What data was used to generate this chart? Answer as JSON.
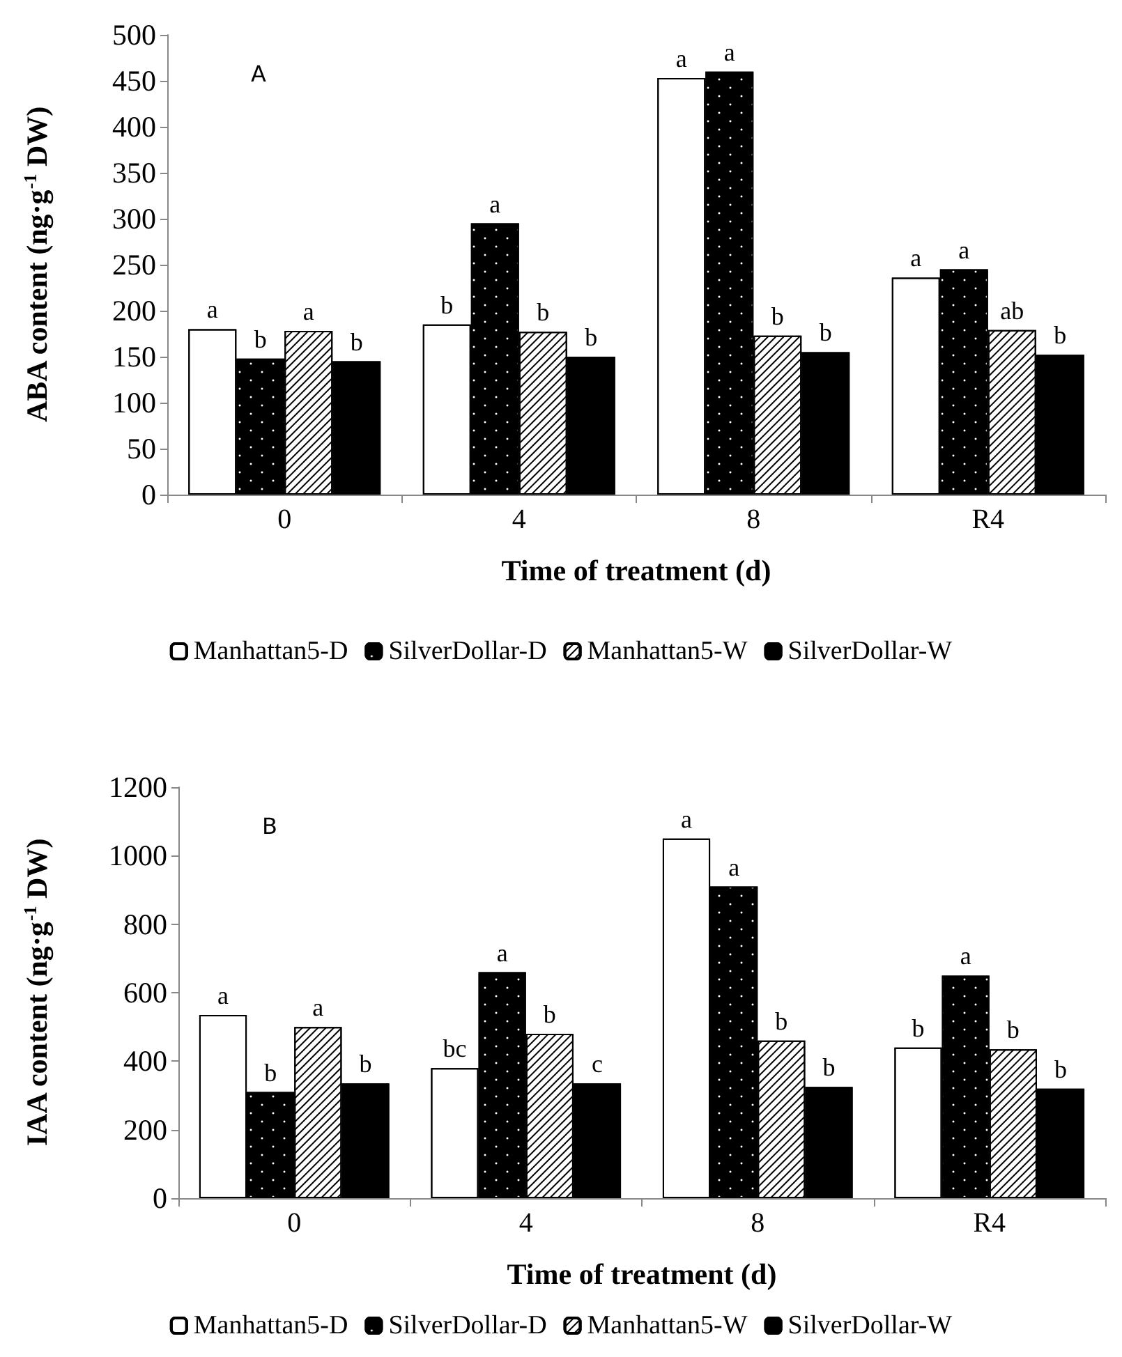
{
  "chart_data": [
    {
      "type": "bar",
      "annotations": [
        "A"
      ],
      "xlabel": "Time of treatment (d)",
      "ylabel": "ABA content (ng·g$^{-1}$ DW)",
      "categories": [
        "0",
        "4",
        "8",
        "R4"
      ],
      "ylim": [
        0,
        500
      ],
      "yticks": [
        0,
        50,
        100,
        150,
        200,
        250,
        300,
        350,
        400,
        450,
        500
      ],
      "legend": "bottom",
      "grid": false,
      "series": [
        {
          "name": "Manhattan5-D",
          "color": "#ffffff",
          "values": [
            180,
            185,
            453,
            236
          ],
          "value_labels": [
            "a",
            "b",
            "a",
            "a"
          ]
        },
        {
          "name": "SilverDollar-D",
          "color": "#000000",
          "values": [
            148,
            295,
            460,
            245
          ],
          "value_labels": [
            "b",
            "a",
            "a",
            "a"
          ]
        },
        {
          "name": "Manhattan5-W",
          "color": "#ffffff",
          "values": [
            178,
            177,
            173,
            179
          ],
          "value_labels": [
            "a",
            "b",
            "b",
            "ab"
          ]
        },
        {
          "name": "SilverDollar-W",
          "color": "#000000",
          "values": [
            145,
            150,
            155,
            152
          ],
          "value_labels": [
            "b",
            "b",
            "b",
            "b"
          ]
        }
      ]
    },
    {
      "type": "bar",
      "annotations": [
        "B"
      ],
      "xlabel": "Time of treatment (d)",
      "ylabel": "IAA content (ng·g$^{-1}$ DW)",
      "categories": [
        "0",
        "4",
        "8",
        "R4"
      ],
      "ylim": [
        0,
        1200
      ],
      "yticks": [
        0,
        200,
        400,
        600,
        800,
        1000,
        1200
      ],
      "legend": "bottom",
      "grid": false,
      "series": [
        {
          "name": "Manhattan5-D",
          "color": "#ffffff",
          "values": [
            535,
            380,
            1050,
            440
          ],
          "value_labels": [
            "a",
            "bc",
            "a",
            "b"
          ]
        },
        {
          "name": "SilverDollar-D",
          "color": "#000000",
          "values": [
            310,
            660,
            910,
            650
          ],
          "value_labels": [
            "b",
            "a",
            "a",
            "a"
          ]
        },
        {
          "name": "Manhattan5-W",
          "color": "#ffffff",
          "values": [
            500,
            480,
            460,
            435
          ],
          "value_labels": [
            "a",
            "b",
            "b",
            "b"
          ]
        },
        {
          "name": "SilverDollar-W",
          "color": "#000000",
          "values": [
            335,
            335,
            325,
            320
          ],
          "value_labels": [
            "b",
            "c",
            "b",
            "b"
          ]
        }
      ]
    }
  ]
}
